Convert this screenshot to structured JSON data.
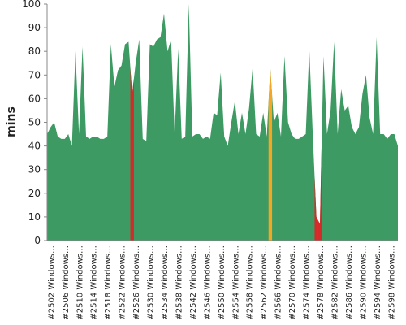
{
  "chart_data": {
    "type": "area",
    "ylabel": "mins",
    "categories": [
      null,
      "#2502 Windows…",
      null,
      null,
      null,
      "#2506 Windows…",
      null,
      null,
      null,
      "#2510 Windows…",
      null,
      null,
      null,
      "#2514 Windows…",
      null,
      null,
      null,
      "#2518 Windows…",
      null,
      null,
      null,
      "#2522 Windows…",
      null,
      null,
      null,
      "#2526 Windows…",
      null,
      null,
      null,
      "#2530 Windows…",
      null,
      null,
      null,
      "#2534 Windows…",
      null,
      null,
      null,
      "#2538 Windows…",
      null,
      null,
      null,
      "#2542 Windows…",
      null,
      null,
      null,
      "#2546 Windows…",
      null,
      null,
      null,
      "#2550 Windows…",
      null,
      null,
      null,
      "#2554 Windows…",
      null,
      null,
      null,
      "#2558 Windows…",
      null,
      null,
      null,
      "#2562 Windows…",
      null,
      null,
      null,
      "#2566 Windows…",
      null,
      null,
      null,
      "#2570 Windows…",
      null,
      null,
      null,
      "#2574 Windows…",
      null,
      null,
      null,
      "#2578 Windows…",
      null,
      null,
      null,
      "#2582 Windows…",
      null,
      null,
      null,
      "#2586 Windows…",
      null,
      null,
      null,
      "#2590 Windows…",
      null,
      null,
      null,
      "#2594 Windows…",
      null,
      null,
      null,
      "#2598 Windows…",
      null,
      null
    ],
    "series": [
      {
        "color": "#3c9a62",
        "values": [
          45,
          48,
          50,
          44,
          43,
          43,
          45,
          40,
          80,
          45,
          82,
          44,
          43,
          44,
          44,
          43,
          43,
          44,
          83,
          65,
          72,
          74,
          83,
          84,
          62,
          75,
          85,
          43,
          42,
          83,
          82,
          85,
          86,
          96,
          80,
          85,
          45,
          81,
          43,
          44,
          100,
          44,
          45,
          45,
          43,
          44,
          43,
          54,
          53,
          71,
          44,
          40,
          50,
          59,
          45,
          54,
          45,
          56,
          73,
          45,
          44,
          54,
          44,
          73,
          50,
          54,
          44,
          78,
          50,
          45,
          43,
          43,
          44,
          45,
          81,
          44,
          10,
          7,
          78,
          45,
          55,
          84,
          45,
          64,
          55,
          57,
          48,
          45,
          48,
          62,
          70,
          52,
          45,
          86,
          45,
          45,
          43,
          45,
          45,
          40
        ],
        "point_colors": [
          "#3c9a62",
          "#3c9a62",
          "#3c9a62",
          "#3c9a62",
          "#3c9a62",
          "#3c9a62",
          "#3c9a62",
          "#3c9a62",
          "#3c9a62",
          "#3c9a62",
          "#3c9a62",
          "#3c9a62",
          "#3c9a62",
          "#3c9a62",
          "#3c9a62",
          "#3c9a62",
          "#3c9a62",
          "#3c9a62",
          "#3c9a62",
          "#3c9a62",
          "#3c9a62",
          "#3c9a62",
          "#3c9a62",
          "#3c9a62",
          "#d42a2a",
          "#3c9a62",
          "#3c9a62",
          "#3c9a62",
          "#3c9a62",
          "#3c9a62",
          "#3c9a62",
          "#3c9a62",
          "#3c9a62",
          "#3c9a62",
          "#3c9a62",
          "#3c9a62",
          "#3c9a62",
          "#3c9a62",
          "#3c9a62",
          "#3c9a62",
          "#3c9a62",
          "#3c9a62",
          "#3c9a62",
          "#3c9a62",
          "#3c9a62",
          "#3c9a62",
          "#3c9a62",
          "#3c9a62",
          "#3c9a62",
          "#3c9a62",
          "#3c9a62",
          "#3c9a62",
          "#3c9a62",
          "#3c9a62",
          "#3c9a62",
          "#3c9a62",
          "#3c9a62",
          "#3c9a62",
          "#3c9a62",
          "#3c9a62",
          "#3c9a62",
          "#3c9a62",
          "#3c9a62",
          "#f5a623",
          "#3c9a62",
          "#3c9a62",
          "#3c9a62",
          "#3c9a62",
          "#3c9a62",
          "#3c9a62",
          "#3c9a62",
          "#3c9a62",
          "#3c9a62",
          "#3c9a62",
          "#3c9a62",
          "#3c9a62",
          "#d42a2a",
          "#d42a2a",
          "#3c9a62",
          "#3c9a62",
          "#3c9a62",
          "#3c9a62",
          "#3c9a62",
          "#3c9a62",
          "#3c9a62",
          "#3c9a62",
          "#3c9a62",
          "#3c9a62",
          "#3c9a62",
          "#3c9a62",
          "#3c9a62",
          "#3c9a62",
          "#3c9a62",
          "#3c9a62",
          "#3c9a62",
          "#3c9a62",
          "#3c9a62",
          "#3c9a62",
          "#3c9a62",
          "#3c9a62"
        ]
      }
    ],
    "ylim": [
      0,
      100
    ],
    "yticks": [
      0,
      10,
      20,
      30,
      40,
      50,
      60,
      70,
      80,
      90,
      100
    ]
  }
}
